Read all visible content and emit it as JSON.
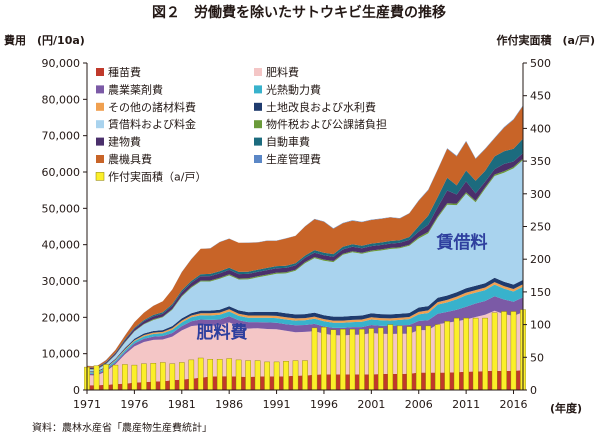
{
  "chart_data": {
    "type": "area",
    "title": "図２　労働費を除いたサトウキビ生産費の推移",
    "y_left_label": "費用　(円/10a)",
    "y_right_label": "作付実面積　(a/戸)",
    "x_unit_label": "(年度)",
    "source": "資料：農林水産省「農産物生産費統計」",
    "x_tick_labels": [
      "1971",
      "1976",
      "1981",
      "1986",
      "1991",
      "1996",
      "2001",
      "2006",
      "2011",
      "2016"
    ],
    "y_left_ticks": [
      "0",
      "10,000",
      "20,000",
      "30,000",
      "40,000",
      "50,000",
      "60,000",
      "70,000",
      "80,000",
      "90,000"
    ],
    "y_right_ticks": [
      "0",
      "50",
      "100",
      "150",
      "200",
      "250",
      "300",
      "350",
      "400",
      "450",
      "500"
    ],
    "ylim_left": [
      0,
      90000
    ],
    "ylim_right": [
      0,
      500
    ],
    "grid": false,
    "legend_placement": "top-left inside plot, two columns",
    "annotations": [
      {
        "text": "肥料費",
        "color": "#2e3f9e"
      },
      {
        "text": "賃借料",
        "color": "#2e3f9e"
      }
    ],
    "years": [
      1971,
      1972,
      1973,
      1974,
      1975,
      1976,
      1977,
      1978,
      1979,
      1980,
      1981,
      1982,
      1983,
      1984,
      1985,
      1986,
      1987,
      1988,
      1989,
      1990,
      1991,
      1992,
      1993,
      1994,
      1995,
      1996,
      1997,
      1998,
      1999,
      2000,
      2001,
      2002,
      2003,
      2004,
      2005,
      2006,
      2007,
      2008,
      2009,
      2010,
      2011,
      2012,
      2013,
      2014,
      2015,
      2016,
      2017
    ],
    "series": [
      {
        "name": "種苗費",
        "color": "#c0392b",
        "values": [
          1300,
          1300,
          1400,
          1600,
          1800,
          2000,
          2200,
          2300,
          2400,
          2700,
          2900,
          3100,
          3400,
          3700,
          3800,
          3800,
          3700,
          3600,
          3700,
          3800,
          3700,
          3800,
          3900,
          4000,
          4200,
          4300,
          4300,
          4300,
          4300,
          4300,
          4300,
          4400,
          4400,
          4400,
          4500,
          4800,
          4800,
          4800,
          4800,
          4900,
          5000,
          5100,
          5200,
          5300,
          5200,
          5300,
          5400
        ]
      },
      {
        "name": "肥料費",
        "color": "#f4c6c6",
        "values": [
          2800,
          2700,
          3700,
          5500,
          8000,
          10000,
          11000,
          11500,
          11500,
          12000,
          13500,
          14500,
          14500,
          14000,
          14000,
          14800,
          13800,
          13300,
          13300,
          13000,
          13000,
          12500,
          12000,
          12000,
          12000,
          11200,
          10800,
          10700,
          10900,
          10900,
          11400,
          11100,
          11000,
          11100,
          11000,
          11700,
          11700,
          13300,
          13700,
          14000,
          14400,
          15000,
          15500,
          16500,
          15700,
          15100,
          16000
        ]
      },
      {
        "name": "農業薬剤費",
        "color": "#7b5aa6",
        "values": [
          400,
          400,
          450,
          500,
          600,
          800,
          900,
          900,
          950,
          1000,
          1200,
          1300,
          1500,
          1600,
          1600,
          1700,
          1700,
          1800,
          1700,
          1800,
          1800,
          1800,
          1900,
          1900,
          2000,
          2000,
          2000,
          2100,
          2100,
          2100,
          2200,
          2200,
          2200,
          2300,
          2400,
          2500,
          2700,
          2900,
          3000,
          3200,
          3500,
          3700,
          3800,
          4000,
          4000,
          3900,
          4100
        ]
      },
      {
        "name": "光熱動力費",
        "color": "#38b2cc",
        "values": [
          400,
          400,
          450,
          500,
          550,
          600,
          650,
          700,
          750,
          900,
          1000,
          1100,
          1200,
          1200,
          1300,
          1300,
          1200,
          1200,
          1200,
          1300,
          1300,
          1300,
          1300,
          1300,
          1400,
          1400,
          1400,
          1400,
          1400,
          1500,
          1500,
          1500,
          1500,
          1500,
          1600,
          1800,
          2000,
          2500,
          2600,
          2900,
          3200,
          3000,
          3000,
          3200,
          3000,
          2800,
          2900
        ]
      },
      {
        "name": "その他の諸材料費",
        "color": "#f0a050",
        "values": [
          100,
          100,
          150,
          200,
          250,
          300,
          350,
          400,
          400,
          450,
          500,
          500,
          550,
          600,
          600,
          600,
          600,
          600,
          600,
          600,
          600,
          600,
          600,
          600,
          600,
          600,
          600,
          600,
          600,
          600,
          600,
          600,
          600,
          600,
          600,
          700,
          700,
          700,
          700,
          700,
          700,
          700,
          700,
          700,
          700,
          700,
          700
        ]
      },
      {
        "name": "土地改良および水利費",
        "color": "#1f3b6e",
        "values": [
          200,
          200,
          250,
          300,
          350,
          400,
          450,
          450,
          500,
          550,
          600,
          650,
          700,
          750,
          800,
          850,
          900,
          950,
          1000,
          1000,
          1100,
          1100,
          1100,
          1100,
          1100,
          1100,
          1100,
          1100,
          1100,
          1100,
          1100,
          1100,
          1100,
          1100,
          1100,
          1200,
          1200,
          1200,
          1200,
          1200,
          1200,
          1200,
          1200,
          1200,
          1200,
          1200,
          1200
        ]
      },
      {
        "name": "賃借料および料金",
        "color": "#a9d3ee",
        "values": [
          500,
          500,
          700,
          1000,
          1500,
          2000,
          2500,
          3000,
          3500,
          4500,
          6000,
          7000,
          8000,
          8000,
          8500,
          8500,
          8500,
          9000,
          9500,
          10000,
          10500,
          11000,
          12000,
          14000,
          15000,
          15000,
          15000,
          17000,
          17500,
          17000,
          17000,
          17500,
          18000,
          18000,
          18500,
          19000,
          20000,
          22000,
          25000,
          24000,
          26000,
          23000,
          26000,
          28000,
          30000,
          32000,
          33000
        ]
      },
      {
        "name": "物件税および公課諸負担",
        "color": "#6a9a3a",
        "values": [
          100,
          100,
          100,
          100,
          150,
          150,
          150,
          200,
          200,
          200,
          250,
          250,
          250,
          300,
          300,
          300,
          300,
          300,
          300,
          300,
          300,
          300,
          300,
          300,
          300,
          300,
          300,
          300,
          300,
          300,
          300,
          300,
          300,
          300,
          300,
          400,
          400,
          400,
          400,
          400,
          400,
          400,
          400,
          400,
          400,
          400,
          400
        ]
      },
      {
        "name": "建物費",
        "color": "#4a2f6b",
        "values": [
          300,
          300,
          350,
          400,
          500,
          600,
          700,
          800,
          800,
          900,
          1000,
          1100,
          1200,
          1200,
          1200,
          1200,
          1200,
          1200,
          1200,
          1200,
          1200,
          1200,
          1200,
          1200,
          1200,
          1200,
          1200,
          1200,
          1200,
          1200,
          1200,
          1200,
          1200,
          1200,
          1300,
          1500,
          2000,
          2500,
          3500,
          2500,
          3000,
          2000,
          1500,
          1500,
          2000,
          1500,
          1500
        ]
      },
      {
        "name": "自動車費",
        "color": "#1c6b7e",
        "values": [
          100,
          100,
          150,
          200,
          250,
          300,
          350,
          400,
          400,
          450,
          500,
          500,
          550,
          600,
          600,
          600,
          600,
          600,
          600,
          600,
          600,
          600,
          600,
          600,
          700,
          700,
          700,
          700,
          700,
          700,
          700,
          700,
          700,
          700,
          800,
          1500,
          2500,
          2800,
          3500,
          2500,
          3000,
          3500,
          3000,
          3500,
          3500,
          3500,
          4000
        ]
      },
      {
        "name": "農機具費",
        "color": "#c86428",
        "values": [
          400,
          400,
          500,
          700,
          1000,
          1500,
          2000,
          2500,
          3000,
          4000,
          5000,
          6000,
          7000,
          7000,
          8000,
          8000,
          8000,
          8000,
          7500,
          7500,
          7000,
          7500,
          7500,
          8000,
          8500,
          8500,
          7000,
          6500,
          6500,
          6500,
          6500,
          6500,
          6500,
          6000,
          6500,
          7000,
          7000,
          7500,
          8000,
          8000,
          8000,
          6000,
          6000,
          5000,
          6500,
          8000,
          9000
        ]
      },
      {
        "name": "生産管理費",
        "color": "#5b87c6",
        "values": [
          50,
          50,
          50,
          50,
          50,
          50,
          50,
          50,
          50,
          50,
          50,
          50,
          50,
          50,
          50,
          50,
          50,
          50,
          50,
          50,
          50,
          50,
          50,
          50,
          100,
          100,
          100,
          100,
          100,
          100,
          100,
          100,
          100,
          100,
          100,
          150,
          150,
          150,
          150,
          150,
          150,
          150,
          150,
          150,
          150,
          150,
          150
        ]
      }
    ],
    "bar_series": {
      "name": "作付実面積（a/戸）",
      "color": "#fbef2a",
      "axis": "right",
      "values": [
        35,
        37,
        39,
        38,
        39,
        38,
        40,
        41,
        42,
        40,
        42,
        46,
        49,
        47,
        47,
        48,
        46,
        45,
        45,
        43,
        43,
        44,
        45,
        45,
        95,
        96,
        92,
        93,
        93,
        93,
        94,
        95,
        100,
        98,
        97,
        98,
        98,
        100,
        105,
        110,
        110,
        110,
        110,
        118,
        120,
        120,
        123
      ]
    }
  }
}
